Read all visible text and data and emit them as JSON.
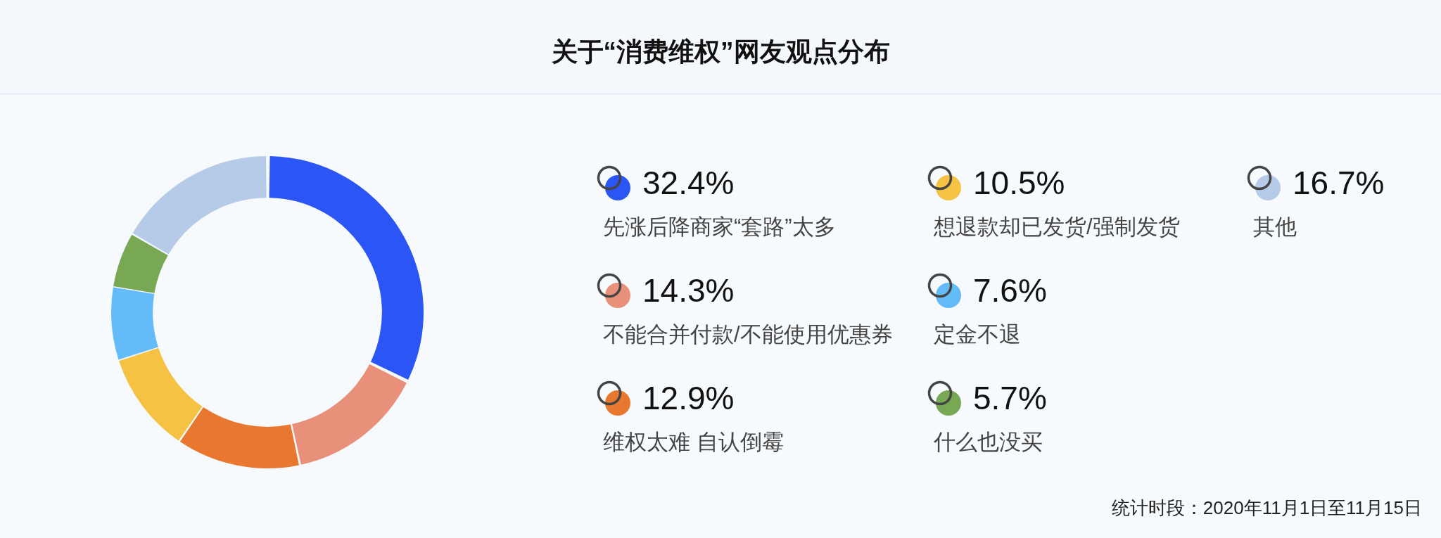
{
  "chart_data": {
    "type": "donut",
    "title": "关于“消费维权”网友观点分布",
    "categories": [
      "先涨后降商家“套路”太多",
      "不能合并付款/不能使用优惠券",
      "维权太难 自认倒霉",
      "想退款却已发货/强制发货",
      "定金不退",
      "什么也没买",
      "其他"
    ],
    "values": [
      32.4,
      14.3,
      12.9,
      10.5,
      7.6,
      5.7,
      16.7
    ],
    "value_labels": [
      "32.4%",
      "14.3%",
      "12.9%",
      "10.5%",
      "7.6%",
      "5.7%",
      "16.7%"
    ],
    "colors": [
      "#2c55f5",
      "#e8907a",
      "#e8782f",
      "#f6c243",
      "#63bbf8",
      "#78a854",
      "#b6cbe8"
    ],
    "legend": "right",
    "annotations": [
      "统计时段：2020年11月1日至11月15日"
    ]
  }
}
